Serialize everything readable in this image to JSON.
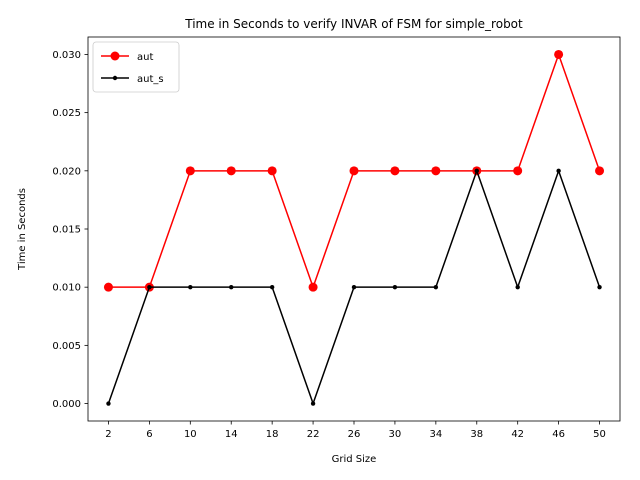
{
  "chart_data": {
    "type": "line",
    "title": "Time in Seconds to verify INVAR of FSM for simple_robot",
    "xlabel": "Grid Size",
    "ylabel": "Time in Seconds",
    "x": [
      2,
      6,
      10,
      14,
      18,
      22,
      26,
      30,
      34,
      38,
      42,
      46,
      50
    ],
    "x_ticks": [
      "2",
      "6",
      "10",
      "14",
      "18",
      "22",
      "26",
      "30",
      "34",
      "38",
      "42",
      "46",
      "50"
    ],
    "y_ticks": [
      "0.000",
      "0.005",
      "0.010",
      "0.015",
      "0.020",
      "0.025",
      "0.030"
    ],
    "y_tick_values": [
      0.0,
      0.005,
      0.01,
      0.015,
      0.02,
      0.025,
      0.03
    ],
    "xlim": [
      0,
      52
    ],
    "ylim": [
      -0.0015,
      0.0315
    ],
    "grid": false,
    "legend_position": "top-left",
    "series": [
      {
        "name": "aut",
        "color": "#ff0000",
        "marker": "large-circle",
        "values": [
          0.01,
          0.01,
          0.02,
          0.02,
          0.02,
          0.01,
          0.02,
          0.02,
          0.02,
          0.02,
          0.02,
          0.03,
          0.02
        ]
      },
      {
        "name": "aut_s",
        "color": "#000000",
        "marker": "small-dot",
        "values": [
          0.0,
          0.01,
          0.01,
          0.01,
          0.01,
          0.0,
          0.01,
          0.01,
          0.01,
          0.02,
          0.01,
          0.02,
          0.01
        ]
      }
    ]
  }
}
